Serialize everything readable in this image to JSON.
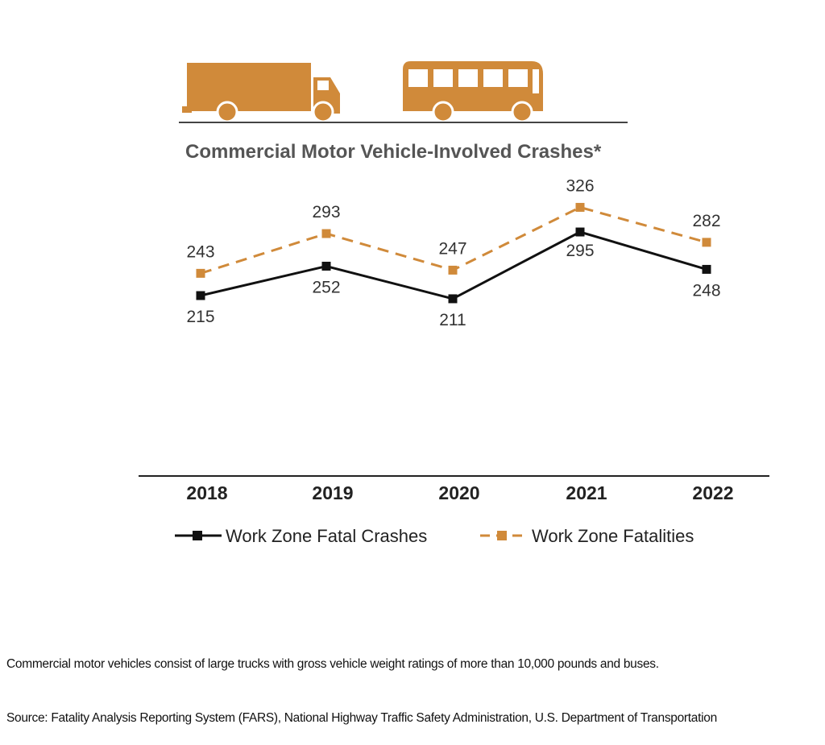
{
  "chart_data": {
    "type": "line",
    "title": "Commercial Motor Vehicle-Involved Crashes*",
    "categories": [
      "2018",
      "2019",
      "2020",
      "2021",
      "2022"
    ],
    "series": [
      {
        "name": "Work Zone Fatal Crashes",
        "values": [
          215,
          252,
          211,
          295,
          248
        ],
        "color": "#111111",
        "style": "solid"
      },
      {
        "name": "Work Zone Fatalities",
        "values": [
          243,
          293,
          247,
          326,
          282
        ],
        "color": "#d08a3a",
        "style": "dashed"
      }
    ],
    "legend_position": "bottom",
    "grid": false
  },
  "icons": {
    "truck": "truck-icon",
    "bus": "bus-icon",
    "color": "#d08a3a"
  },
  "footnotes": {
    "definition": "Commercial motor vehicles consist of large trucks with gross vehicle weight ratings of more than 10,000 pounds and buses.",
    "source": "Source: Fatality Analysis Reporting System (FARS), National Highway Traffic Safety Administration, U.S. Department of Transportation"
  }
}
